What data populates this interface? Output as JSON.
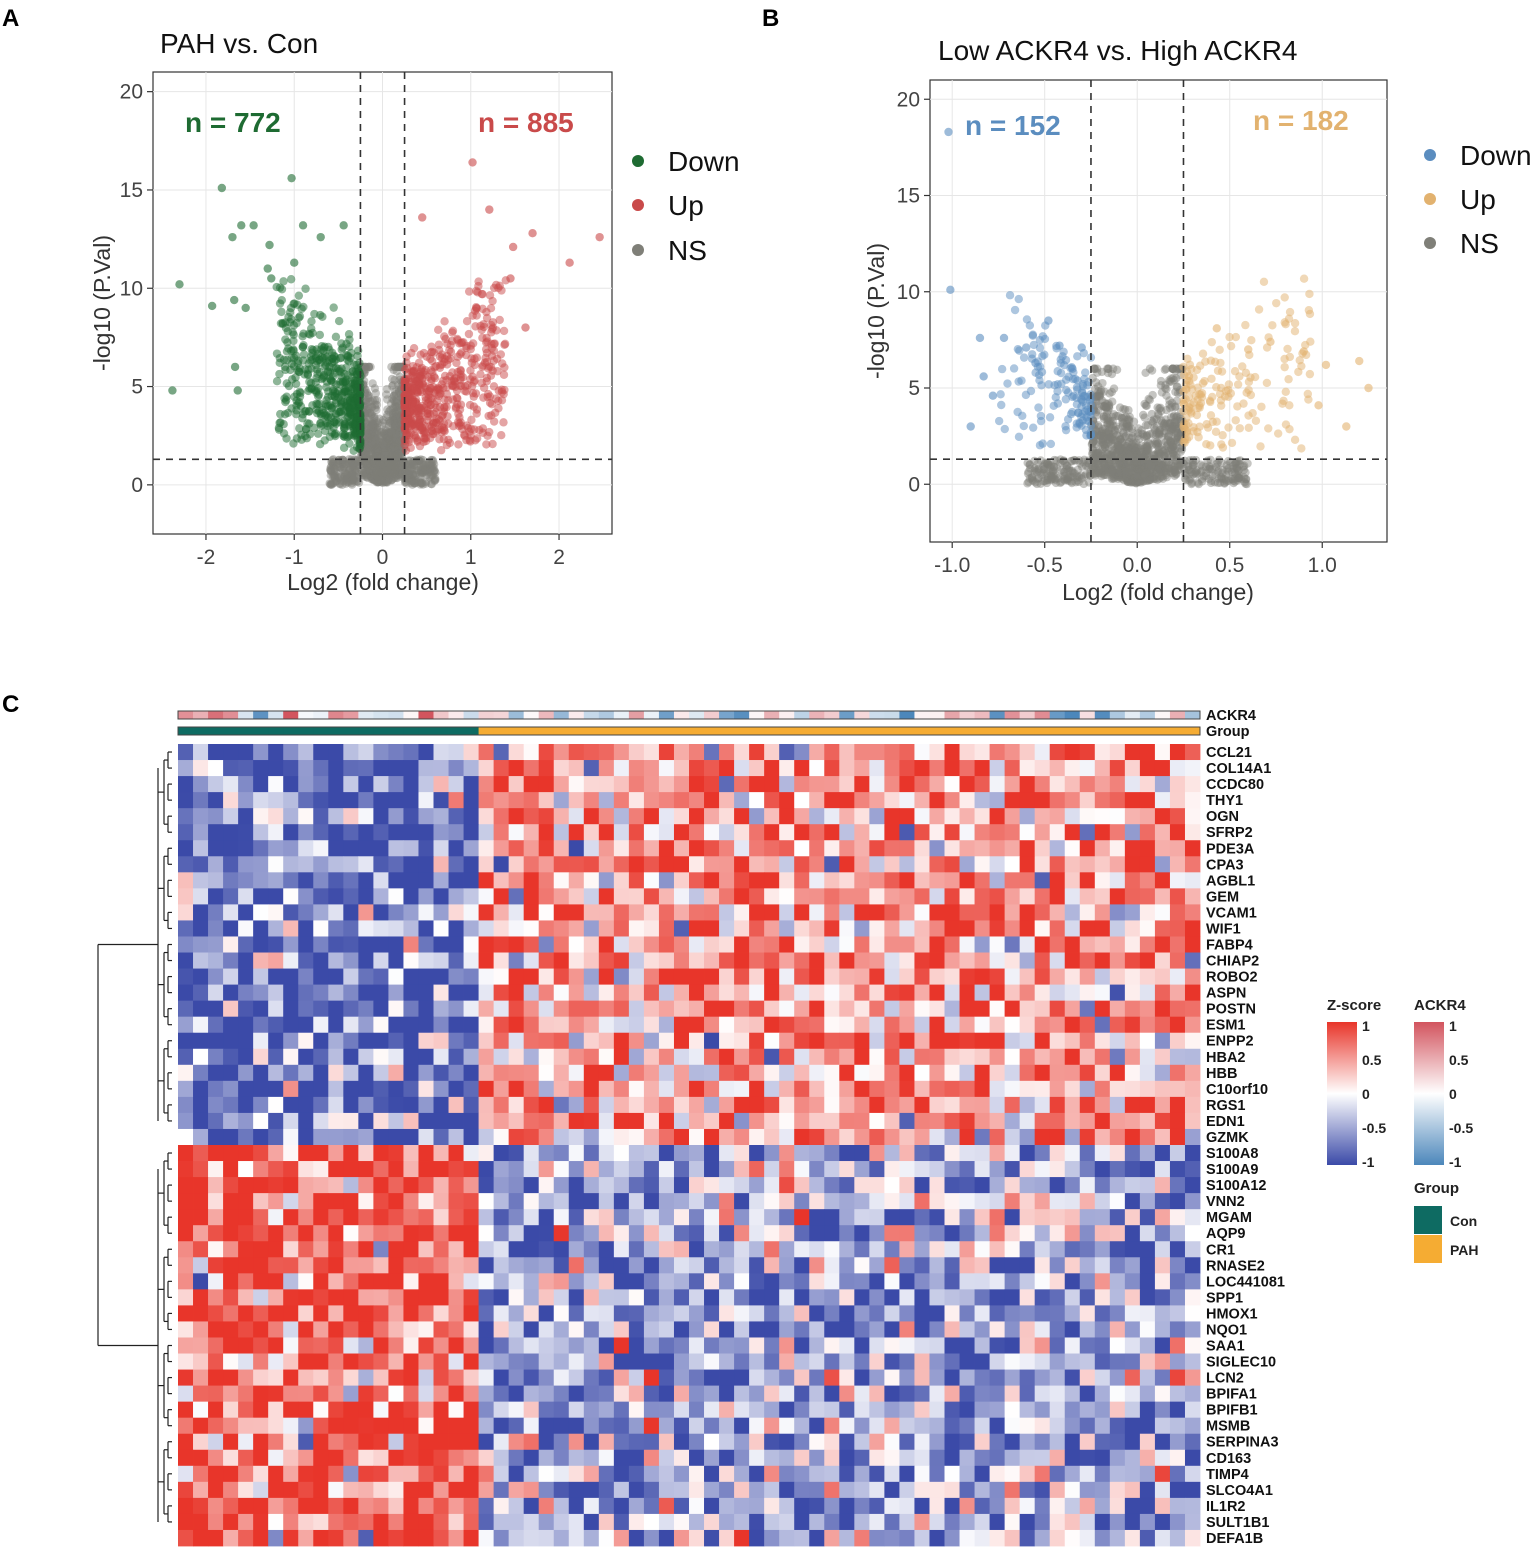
{
  "chart_data": [
    {
      "panel": "A",
      "type": "scatter",
      "title": "PAH vs. Con",
      "xlabel": "Log2 (fold change)",
      "ylabel": "-log10 (P.Val)",
      "xlim": [
        -2.6,
        2.6
      ],
      "ylim": [
        -2.5,
        21
      ],
      "xticks": [
        -2,
        -1,
        0,
        1,
        2
      ],
      "yticks": [
        0,
        5,
        10,
        15,
        20
      ],
      "fc_threshold": 0.25,
      "p_threshold_log10": 1.3,
      "legend": [
        {
          "label": "Down",
          "color": "#1e6b32"
        },
        {
          "label": "Up",
          "color": "#c94a4a"
        },
        {
          "label": "NS",
          "color": "#7f7f78"
        }
      ],
      "counts": {
        "down_text": "n = 772",
        "up_text": "n = 885",
        "down_color": "#1e6b32",
        "up_color": "#c94a4a"
      },
      "highlight_points": {
        "down": [
          [
            -2.38,
            4.8
          ],
          [
            -2.3,
            10.2
          ],
          [
            -1.93,
            9.1
          ],
          [
            -1.82,
            15.1
          ],
          [
            -1.7,
            12.6
          ],
          [
            -1.68,
            9.4
          ],
          [
            -1.6,
            13.2
          ],
          [
            -1.55,
            9.0
          ],
          [
            -1.67,
            6.0
          ],
          [
            -1.64,
            4.8
          ],
          [
            -1.46,
            13.2
          ],
          [
            -1.3,
            11.0
          ],
          [
            -1.28,
            12.2
          ],
          [
            -1.26,
            10.5
          ],
          [
            -1.03,
            15.6
          ],
          [
            -1.0,
            11.3
          ],
          [
            -0.9,
            13.2
          ],
          [
            -0.7,
            12.6
          ],
          [
            -0.44,
            13.2
          ]
        ],
        "up": [
          [
            0.45,
            13.6
          ],
          [
            1.02,
            16.4
          ],
          [
            1.21,
            14.0
          ],
          [
            1.48,
            12.1
          ],
          [
            1.7,
            12.8
          ],
          [
            2.12,
            11.3
          ],
          [
            2.46,
            12.6
          ],
          [
            1.45,
            10.5
          ],
          [
            1.62,
            8.0
          ]
        ]
      },
      "cloud": {
        "down_n": 520,
        "up_n": 560,
        "ns_n": 900,
        "down_x_range": [
          -1.2,
          -0.25
        ],
        "up_x_range": [
          0.25,
          1.4
        ]
      }
    },
    {
      "panel": "B",
      "type": "scatter",
      "title": "Low ACKR4 vs. High ACKR4",
      "xlabel": "Log2 (fold change)",
      "ylabel": "-log10 (P.Val)",
      "xlim": [
        -1.12,
        1.35
      ],
      "ylim": [
        -3,
        21
      ],
      "xticks": [
        -1.0,
        -0.5,
        0.0,
        0.5,
        1.0
      ],
      "xtick_labels": [
        "-1.0",
        "-0.5",
        "0.0",
        "0.5",
        "1.0"
      ],
      "yticks": [
        0,
        5,
        10,
        15,
        20
      ],
      "fc_threshold": 0.25,
      "p_threshold_log10": 1.3,
      "legend": [
        {
          "label": "Down",
          "color": "#5b8dbf"
        },
        {
          "label": "Up",
          "color": "#e2b26f"
        },
        {
          "label": "NS",
          "color": "#7f7f78"
        }
      ],
      "counts": {
        "down_text": "n = 152",
        "up_text": "n = 182",
        "down_color": "#5b8dbf",
        "up_color": "#e2b26f"
      },
      "highlight_points": {
        "down": [
          [
            -1.02,
            18.3
          ],
          [
            -1.01,
            10.1
          ],
          [
            -0.85,
            7.6
          ],
          [
            -0.83,
            5.6
          ],
          [
            -0.9,
            3.0
          ],
          [
            -0.78,
            4.6
          ],
          [
            -0.72,
            7.6
          ],
          [
            -0.6,
            7.1
          ],
          [
            -0.48,
            8.5
          ],
          [
            -0.42,
            7.2
          ],
          [
            -0.55,
            6.3
          ],
          [
            -0.35,
            6.0
          ],
          [
            -0.3,
            7.1
          ]
        ],
        "up": [
          [
            0.28,
            5.6
          ],
          [
            0.43,
            8.1
          ],
          [
            0.6,
            7.0
          ],
          [
            0.72,
            7.4
          ],
          [
            0.9,
            6.9
          ],
          [
            1.02,
            6.2
          ],
          [
            1.2,
            6.4
          ],
          [
            1.25,
            5.0
          ],
          [
            1.13,
            3.0
          ],
          [
            0.98,
            4.1
          ]
        ]
      },
      "cloud": {
        "down_n": 140,
        "up_n": 170,
        "ns_n": 900,
        "down_x_range": [
          -0.75,
          -0.25
        ],
        "up_x_range": [
          0.25,
          0.95
        ]
      }
    },
    {
      "panel": "C",
      "type": "heatmap",
      "row_labels": [
        "CCL21",
        "COL14A1",
        "CCDC80",
        "THY1",
        "OGN",
        "SFRP2",
        "PDE3A",
        "CPA3",
        "AGBL1",
        "GEM",
        "VCAM1",
        "WIF1",
        "FABP4",
        "CHIAP2",
        "ROBO2",
        "ASPN",
        "POSTN",
        "ESM1",
        "ENPP2",
        "HBA2",
        "HBB",
        "C10orf10",
        "RGS1",
        "EDN1",
        "GZMK",
        "S100A8",
        "S100A9",
        "S100A12",
        "VNN2",
        "MGAM",
        "AQP9",
        "CR1",
        "RNASE2",
        "LOC441081",
        "SPP1",
        "HMOX1",
        "NQO1",
        "SAA1",
        "SIGLEC10",
        "LCN2",
        "BPIFA1",
        "BPIFB1",
        "MSMB",
        "SERPINA3",
        "CD163",
        "TIMP4",
        "SLCO4A1",
        "IL1R2",
        "SULT1B1",
        "DEFA1B"
      ],
      "n_columns": 68,
      "n_control_columns": 20,
      "n_upper_block_rows": 25,
      "annotation_rows": [
        "ACKR4",
        "Group"
      ],
      "zscore_range": [
        -1,
        1
      ],
      "legends": {
        "zscore": {
          "title": "Z-score",
          "ticks": [
            "1",
            "0.5",
            "0",
            "-0.5",
            "-1"
          ],
          "colors": [
            "#e8352a",
            "#ffffff",
            "#3b4aa8"
          ]
        },
        "ackr4": {
          "title": "ACKR4",
          "ticks": [
            "1",
            "0.5",
            "0",
            "-0.5",
            "-1"
          ],
          "colors": [
            "#d2545e",
            "#ffffff",
            "#4c87bb"
          ]
        },
        "group": {
          "title": "Group",
          "items": [
            {
              "label": "Con",
              "color": "#0e6b62"
            },
            {
              "label": "PAH",
              "color": "#f5ac33"
            }
          ]
        }
      }
    }
  ]
}
